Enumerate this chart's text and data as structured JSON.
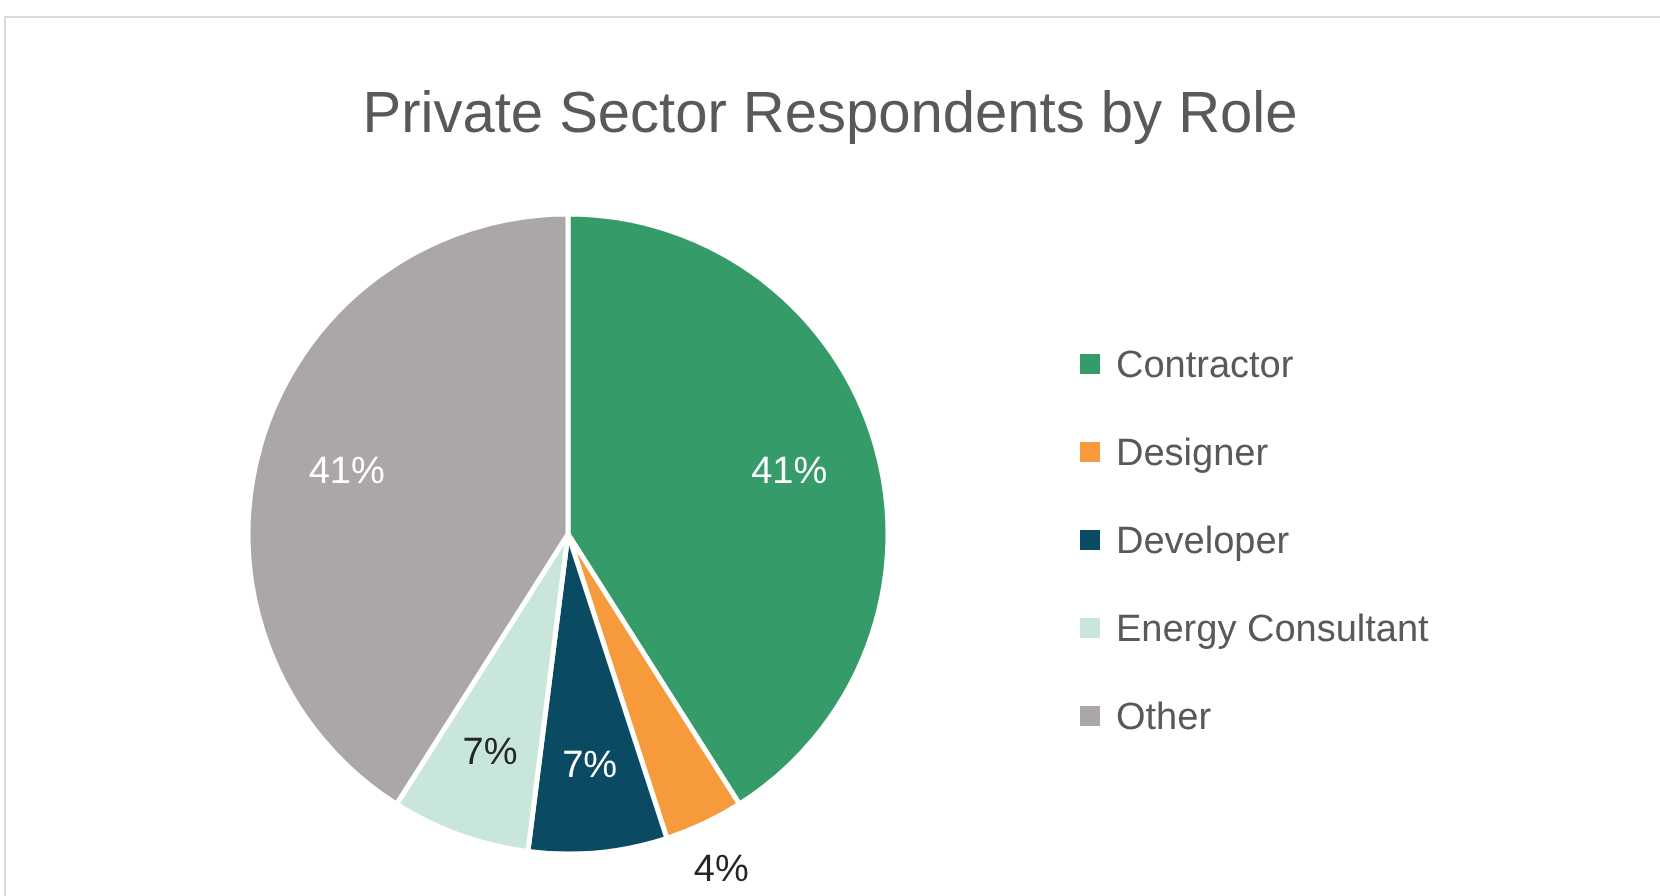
{
  "chart_data": {
    "type": "pie",
    "title": "Private Sector Respondents by Role",
    "categories": [
      "Contractor",
      "Designer",
      "Developer",
      "Energy Consultant",
      "Other"
    ],
    "values": [
      41,
      4,
      7,
      7,
      41
    ],
    "colors": [
      "#359b68",
      "#f79a3b",
      "#0b4a63",
      "#c8e6da",
      "#aba7a6"
    ],
    "value_labels": [
      "41%",
      "4%",
      "7%",
      "7%",
      "41%"
    ],
    "legend": "right"
  }
}
